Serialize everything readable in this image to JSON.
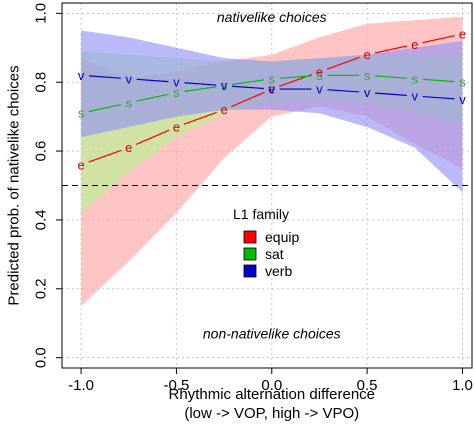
{
  "chart_data": {
    "type": "line",
    "title": "",
    "xlabel": "Rhythmic alternation difference",
    "xlabel_line2": "(low -> VOP, high -> VPO)",
    "ylabel": "Predicted prob. of nativelike choices",
    "xlim": [
      -1.1,
      1.05
    ],
    "ylim": [
      -0.03,
      1.03
    ],
    "x_ticks": [
      -1.0,
      -0.5,
      0.0,
      0.5,
      1.0
    ],
    "x_tick_labels": [
      "-1.0",
      "-0.5",
      "0.0",
      "0.5",
      "1.0"
    ],
    "y_ticks": [
      0.0,
      0.2,
      0.4,
      0.6,
      0.8,
      1.0
    ],
    "y_tick_labels": [
      "0.0",
      "0.2",
      "0.4",
      "0.6",
      "0.8",
      "1.0"
    ],
    "grid": true,
    "reference_line": {
      "y": 0.5,
      "style": "dashed"
    },
    "annotations": {
      "top": "nativelike choices",
      "bottom": "non-nativelike choices"
    },
    "legend": {
      "title": "L1 family",
      "placement": "center"
    },
    "x": [
      -1.0,
      -0.75,
      -0.5,
      -0.25,
      0.0,
      0.25,
      0.5,
      0.75,
      1.0
    ],
    "series": [
      {
        "name": "equip",
        "marker": "e",
        "color": "#ff0000",
        "label_color": "#d40000",
        "band_color": "#ff9f9f",
        "values": [
          0.56,
          0.61,
          0.67,
          0.72,
          0.78,
          0.83,
          0.88,
          0.91,
          0.94
        ],
        "lower": [
          0.15,
          0.28,
          0.42,
          0.58,
          0.7,
          0.73,
          0.7,
          0.62,
          0.55
        ],
        "upper": [
          0.87,
          0.81,
          0.83,
          0.86,
          0.88,
          0.93,
          0.97,
          0.98,
          0.99
        ]
      },
      {
        "name": "sat",
        "marker": "s",
        "color": "#00bb00",
        "label_color": "#33a633",
        "band_color": "#b5f58f",
        "values": [
          0.71,
          0.74,
          0.77,
          0.79,
          0.81,
          0.82,
          0.82,
          0.81,
          0.8
        ],
        "lower": [
          0.42,
          0.54,
          0.64,
          0.71,
          0.74,
          0.75,
          0.74,
          0.71,
          0.68
        ],
        "upper": [
          0.89,
          0.88,
          0.87,
          0.86,
          0.86,
          0.87,
          0.88,
          0.88,
          0.88
        ]
      },
      {
        "name": "verb",
        "marker": "v",
        "color": "#0000cc",
        "label_color": "#0000cc",
        "band_color": "#8f8ff7",
        "values": [
          0.82,
          0.81,
          0.8,
          0.79,
          0.78,
          0.78,
          0.77,
          0.76,
          0.75
        ],
        "lower": [
          0.64,
          0.67,
          0.7,
          0.72,
          0.72,
          0.71,
          0.67,
          0.61,
          0.48
        ],
        "upper": [
          0.95,
          0.93,
          0.9,
          0.87,
          0.86,
          0.87,
          0.88,
          0.9,
          0.92
        ]
      }
    ]
  }
}
